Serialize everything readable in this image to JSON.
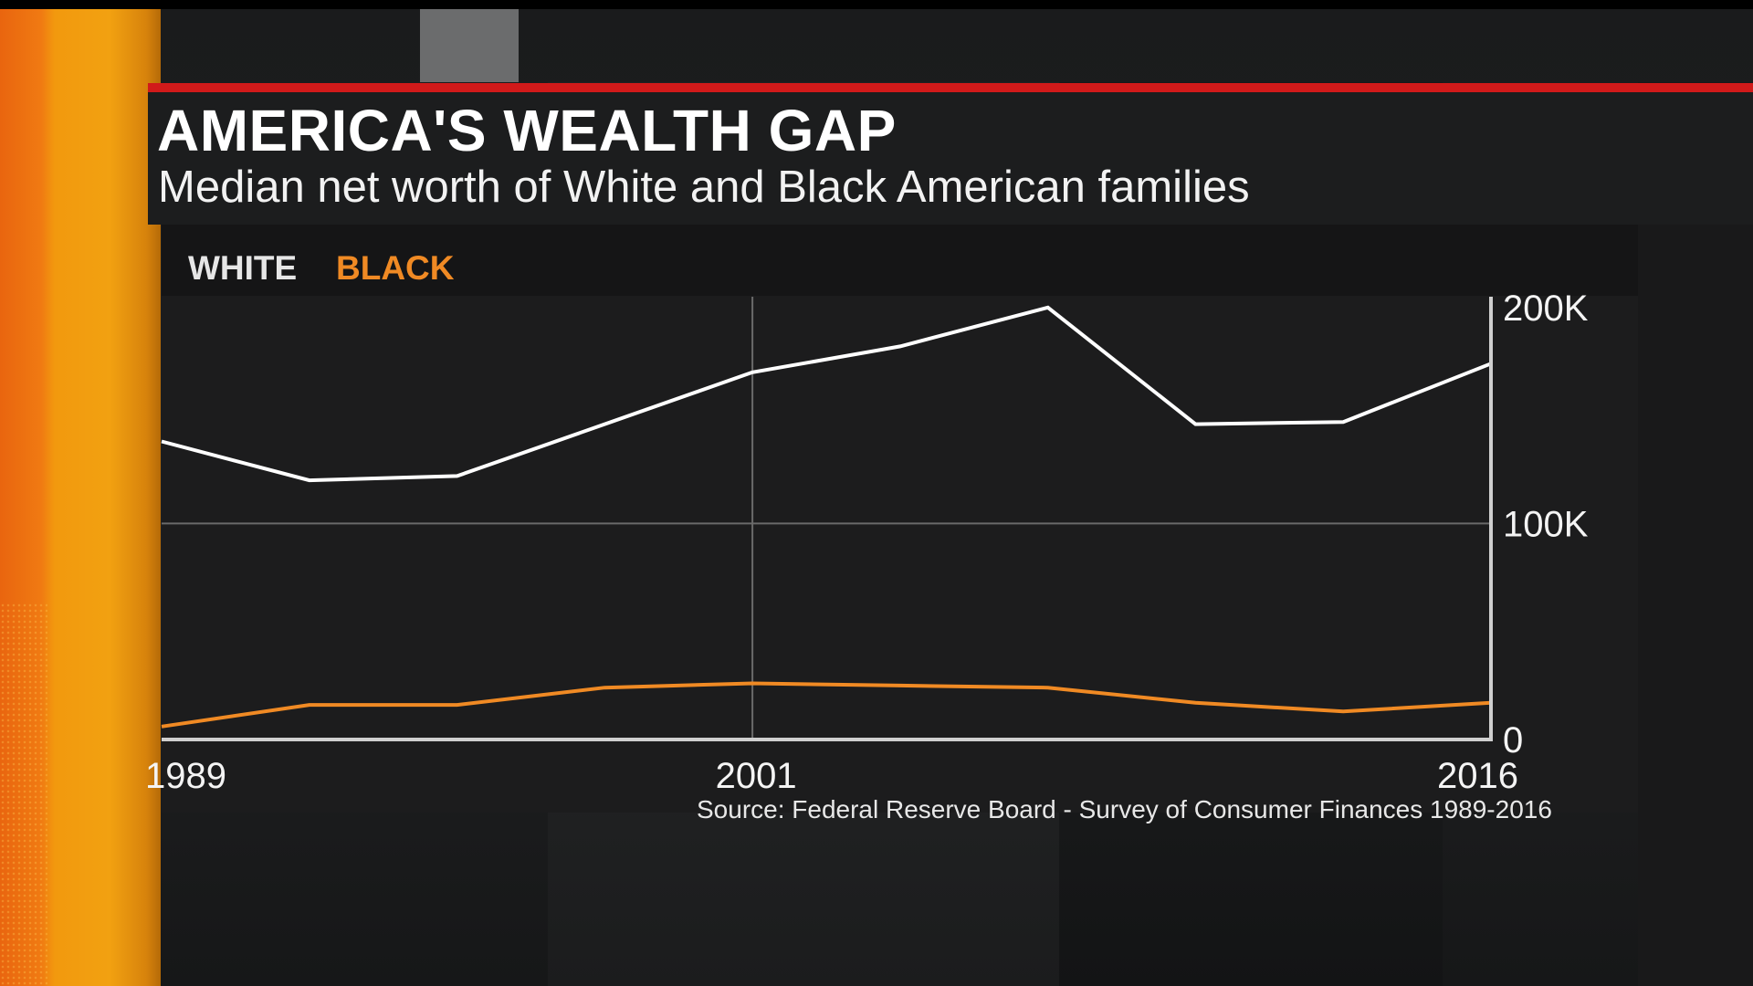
{
  "header": {
    "title": "AMERICA'S WEALTH GAP",
    "subtitle": "Median net worth of White and Black American families"
  },
  "legend": {
    "white_label": "WHITE",
    "black_label": "BLACK"
  },
  "colors": {
    "accent_red": "#d11a1a",
    "white_series": "#ffffff",
    "black_series": "#f08a24",
    "sidebar_orange": "#f2a111"
  },
  "source_note": "Source: Federal Reserve Board - Survey of Consumer Finances 1989-2016",
  "chart_data": {
    "type": "line",
    "title": "AMERICA'S WEALTH GAP",
    "subtitle": "Median net worth of White and Black American families",
    "x": [
      1989,
      1992,
      1995,
      1998,
      2001,
      2004,
      2007,
      2010,
      2013,
      2016
    ],
    "x_tick_labels": [
      "1989",
      "2001",
      "2016"
    ],
    "x_ticks": [
      1989,
      2001,
      2016
    ],
    "xlim": [
      1989,
      2016
    ],
    "y_tick_labels": [
      "200K",
      "100K",
      "0"
    ],
    "y_ticks": [
      200000,
      100000,
      0
    ],
    "ylim": [
      0,
      205000
    ],
    "y_axis_side": "right",
    "grid": "horizontal at 100K, vertical at 2001",
    "legend_position": "top-left",
    "series": [
      {
        "name": "WHITE",
        "color": "#ffffff",
        "values": [
          138000,
          120000,
          122000,
          146000,
          170000,
          182000,
          200000,
          146000,
          147000,
          174000
        ]
      },
      {
        "name": "BLACK",
        "color": "#f08a24",
        "values": [
          6000,
          16000,
          16000,
          24000,
          26000,
          25000,
          24000,
          17000,
          13000,
          17000
        ]
      }
    ],
    "source": "Source: Federal Reserve Board - Survey of Consumer Finances 1989-2016"
  }
}
